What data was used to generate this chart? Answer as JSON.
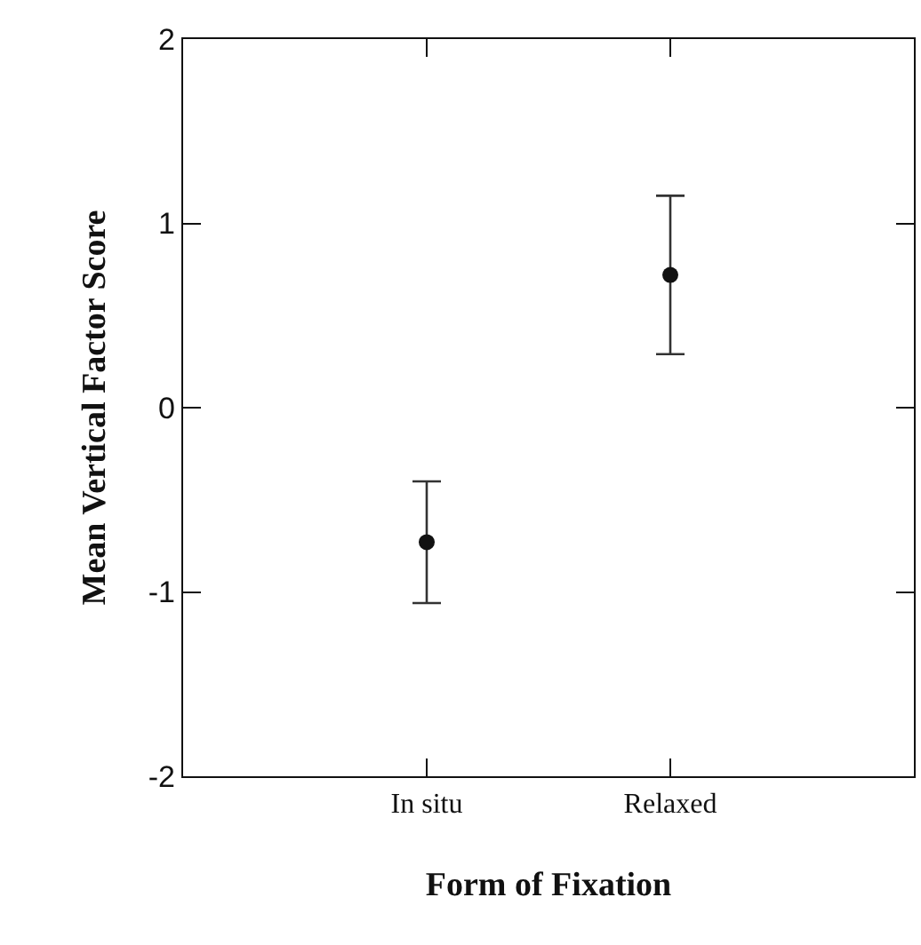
{
  "chart_data": {
    "type": "scatter",
    "xlabel": "Form of Fixation",
    "ylabel": "Mean Vertical Factor Score",
    "categories": [
      "In situ",
      "Relaxed"
    ],
    "series": [
      {
        "color": "#111111",
        "values": [
          -0.73,
          0.72
        ],
        "errors": [
          [
            -1.06,
            -0.4
          ],
          [
            0.29,
            1.15
          ]
        ]
      }
    ],
    "ylim": [
      -2,
      2
    ],
    "yticks": [
      -2,
      -1,
      0,
      1,
      2
    ],
    "marker": "circle"
  }
}
